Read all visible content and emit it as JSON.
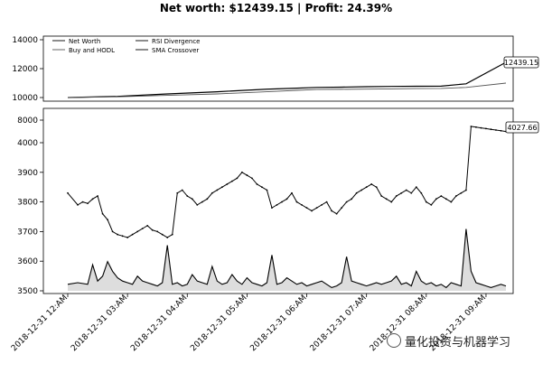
{
  "title": "Net worth: $12439.15 | Profit: 24.39%",
  "watermark": "量化投资与机器学习",
  "chart_data": [
    {
      "type": "line",
      "panel": "net-worth",
      "ylim": [
        10000,
        14000
      ],
      "yticks": [
        "10000",
        "12000",
        "14000"
      ],
      "legend": {
        "placement": "top-left",
        "entries": [
          "Net Worth",
          "Buy and HODL",
          "RSI Divergence",
          "SMA Crossover"
        ]
      },
      "series": [
        {
          "name": "Net Worth",
          "x": [
            0,
            10,
            20,
            30,
            40,
            46,
            50,
            55,
            60,
            65,
            70,
            75,
            80,
            88
          ],
          "values": [
            10000,
            10080,
            10250,
            10400,
            10580,
            10650,
            10700,
            10720,
            10750,
            10770,
            10780,
            10790,
            10950,
            12439.15
          ]
        },
        {
          "name": "Buy and HODL",
          "x": [
            0,
            10,
            20,
            30,
            40,
            46,
            50,
            55,
            60,
            65,
            70,
            75,
            80,
            88
          ],
          "values": [
            10000,
            10050,
            10150,
            10250,
            10400,
            10500,
            10560,
            10570,
            10580,
            10600,
            10620,
            10630,
            10700,
            11000
          ]
        }
      ],
      "annotation": "12439.15"
    },
    {
      "type": "line",
      "panel": "price",
      "ylim": [
        3500,
        4000
      ],
      "yticks": [
        "3500",
        "3600",
        "3700",
        "3800",
        "3900",
        "4000"
      ],
      "axis_break_label": "8000",
      "series": [
        {
          "name": "Price",
          "x": [
            0,
            2,
            3,
            4,
            5,
            6,
            7,
            8,
            9,
            10,
            11,
            12,
            13,
            14,
            15,
            16,
            17,
            18,
            19,
            20,
            21,
            22,
            23,
            24,
            25,
            26,
            27,
            28,
            29,
            30,
            31,
            32,
            33,
            34,
            35,
            36,
            37,
            38,
            39,
            40,
            41,
            42,
            43,
            44,
            45,
            46,
            47,
            48,
            49,
            50,
            51,
            52,
            53,
            54,
            55,
            56,
            57,
            58,
            59,
            60,
            61,
            62,
            63,
            64,
            65,
            66,
            67,
            68,
            69,
            70,
            71,
            72,
            73,
            74,
            75,
            76,
            77,
            78,
            79,
            80,
            81,
            82,
            83,
            84,
            85,
            86,
            87,
            88
          ],
          "values": [
            3830,
            3790,
            3800,
            3795,
            3810,
            3820,
            3760,
            3740,
            3700,
            3690,
            3685,
            3680,
            3690,
            3700,
            3710,
            3720,
            3705,
            3700,
            3690,
            3680,
            3690,
            3830,
            3840,
            3820,
            3810,
            3790,
            3800,
            3810,
            3830,
            3840,
            3850,
            3860,
            3870,
            3880,
            3900,
            3890,
            3880,
            3860,
            3850,
            3840,
            3780,
            3790,
            3800,
            3810,
            3830,
            3800,
            3790,
            3780,
            3770,
            3780,
            3790,
            3800,
            3770,
            3760,
            3780,
            3800,
            3810,
            3830,
            3840,
            3850,
            3860,
            3850,
            3820,
            3810,
            3800,
            3820,
            3830,
            3840,
            3830,
            3850,
            3830,
            3800,
            3790,
            3810,
            3820,
            3810,
            3800,
            3820,
            3830,
            3840,
            3850,
            4000,
            3990,
            3995,
            3990,
            3980,
            4000,
            4000
          ]
        }
      ],
      "annotation": "4027.66"
    },
    {
      "type": "area",
      "panel": "volume",
      "ylim": [
        3500,
        3700
      ],
      "series": [
        {
          "name": "Volume",
          "x": [
            0,
            2,
            4,
            5,
            6,
            7,
            8,
            9,
            10,
            11,
            12,
            13,
            14,
            15,
            16,
            17,
            18,
            19,
            20,
            21,
            22,
            23,
            24,
            25,
            26,
            27,
            28,
            29,
            30,
            31,
            32,
            33,
            34,
            35,
            36,
            37,
            38,
            39,
            40,
            41,
            42,
            43,
            44,
            45,
            46,
            47,
            48,
            49,
            50,
            51,
            52,
            53,
            54,
            55,
            56,
            57,
            58,
            59,
            60,
            61,
            62,
            63,
            64,
            65,
            66,
            67,
            68,
            69,
            70,
            71,
            72,
            73,
            74,
            75,
            76,
            77,
            78,
            79,
            80,
            81,
            82,
            83,
            84,
            85,
            86,
            87,
            88
          ],
          "values": [
            3520,
            3525,
            3520,
            3580,
            3530,
            3545,
            3590,
            3560,
            3540,
            3530,
            3525,
            3520,
            3545,
            3530,
            3525,
            3520,
            3515,
            3525,
            3640,
            3520,
            3525,
            3515,
            3520,
            3550,
            3530,
            3525,
            3520,
            3575,
            3530,
            3520,
            3525,
            3550,
            3530,
            3520,
            3540,
            3525,
            3520,
            3515,
            3525,
            3610,
            3520,
            3525,
            3540,
            3530,
            3520,
            3525,
            3515,
            3520,
            3525,
            3530,
            3520,
            3510,
            3515,
            3525,
            3605,
            3530,
            3525,
            3520,
            3515,
            3520,
            3525,
            3520,
            3525,
            3530,
            3545,
            3520,
            3525,
            3515,
            3560,
            3530,
            3520,
            3525,
            3515,
            3520,
            3510,
            3525,
            3520,
            3515,
            3690,
            3560,
            3525,
            3520,
            3515,
            3510,
            3515,
            3520,
            3515
          ]
        }
      ]
    }
  ],
  "x_ticks": [
    {
      "label": "2018-12-31 12:AM",
      "x": 0
    },
    {
      "label": "2018-12-31 03:AM",
      "x": 12
    },
    {
      "label": "2018-12-31 04:AM",
      "x": 24
    },
    {
      "label": "2018-12-31 05:AM",
      "x": 36
    },
    {
      "label": "2018-12-31 06:AM",
      "x": 48
    },
    {
      "label": "2018-12-31 07:AM",
      "x": 60
    },
    {
      "label": "2018-12-31 08:AM",
      "x": 72
    },
    {
      "label": "2018-12-31 09:AM",
      "x": 84
    }
  ]
}
